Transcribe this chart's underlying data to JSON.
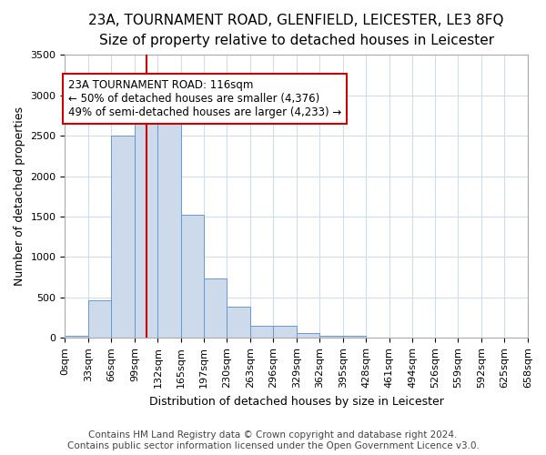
{
  "title": "23A, TOURNAMENT ROAD, GLENFIELD, LEICESTER, LE3 8FQ",
  "subtitle": "Size of property relative to detached houses in Leicester",
  "xlabel": "Distribution of detached houses by size in Leicester",
  "ylabel": "Number of detached properties",
  "footer_line1": "Contains HM Land Registry data © Crown copyright and database right 2024.",
  "footer_line2": "Contains public sector information licensed under the Open Government Licence v3.0.",
  "bin_labels": [
    "0sqm",
    "33sqm",
    "66sqm",
    "99sqm",
    "132sqm",
    "165sqm",
    "197sqm",
    "230sqm",
    "263sqm",
    "296sqm",
    "329sqm",
    "362sqm",
    "395sqm",
    "428sqm",
    "461sqm",
    "494sqm",
    "526sqm",
    "559sqm",
    "592sqm",
    "625sqm",
    "658sqm"
  ],
  "bin_edges": [
    0,
    33,
    66,
    99,
    132,
    165,
    197,
    230,
    263,
    296,
    329,
    362,
    395,
    428,
    461,
    494,
    526,
    559,
    592,
    625,
    658
  ],
  "bar_heights": [
    30,
    470,
    2500,
    2800,
    2800,
    1520,
    740,
    390,
    150,
    150,
    60,
    30,
    30,
    0,
    0,
    0,
    0,
    0,
    0,
    0
  ],
  "bar_color": "#ccdaeb",
  "bar_edge_color": "#6699cc",
  "property_size": 116,
  "vline_color": "#cc0000",
  "annotation_text": "23A TOURNAMENT ROAD: 116sqm\n← 50% of detached houses are smaller (4,376)\n49% of semi-detached houses are larger (4,233) →",
  "annotation_box_color": "#ffffff",
  "annotation_box_edge_color": "#cc0000",
  "ylim": [
    0,
    3500
  ],
  "background_color": "#ffffff",
  "plot_bg_color": "#ffffff",
  "grid_color": "#d0dce8",
  "title_fontsize": 11,
  "subtitle_fontsize": 10,
  "axis_label_fontsize": 9,
  "tick_fontsize": 8,
  "annotation_fontsize": 8.5,
  "footer_fontsize": 7.5
}
